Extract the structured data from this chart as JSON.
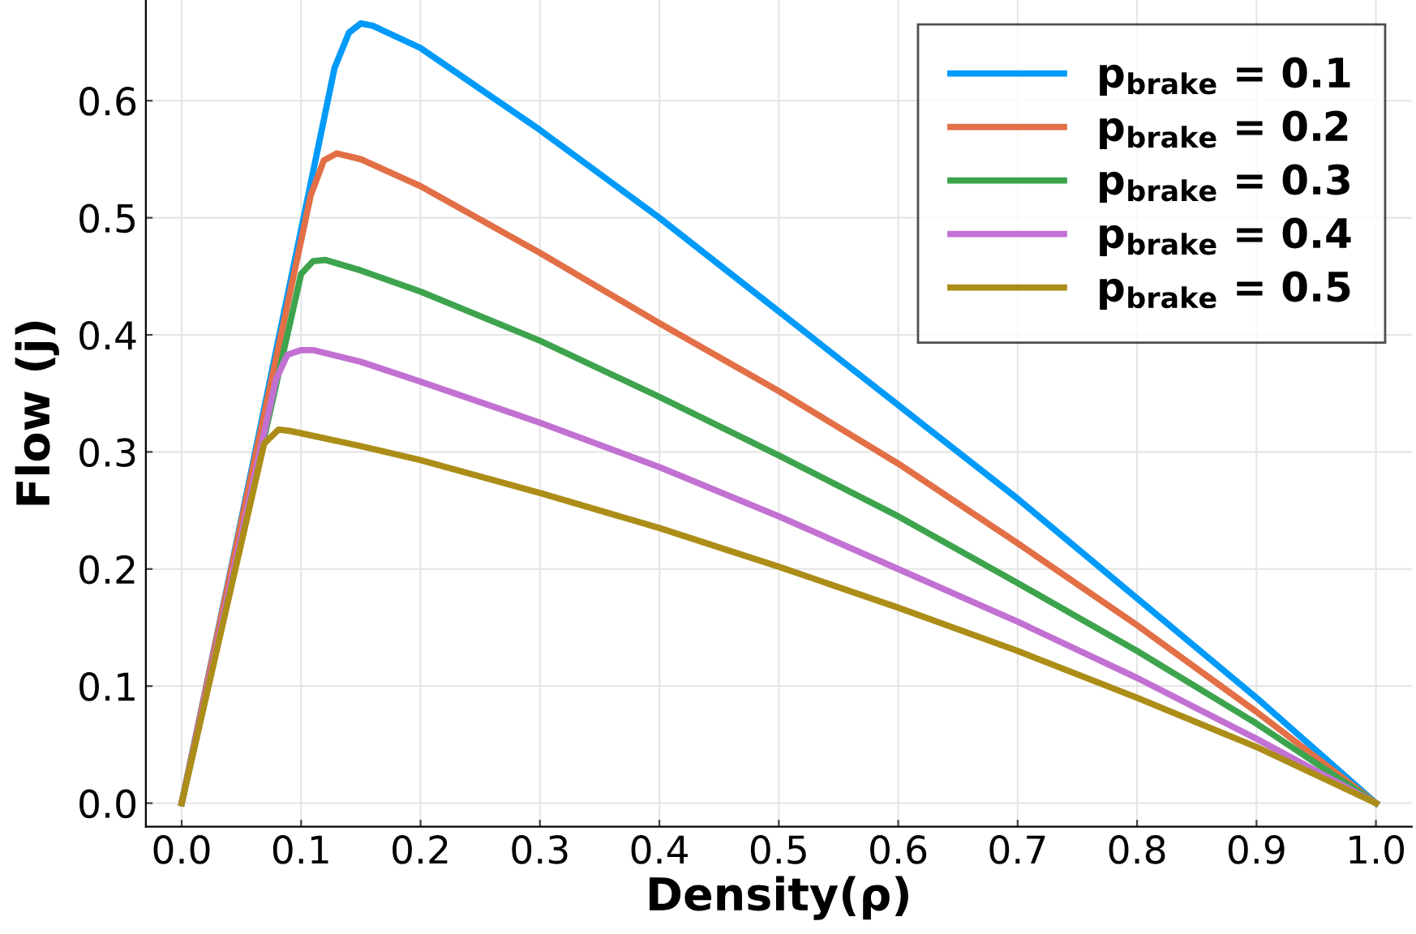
{
  "chart_data": {
    "type": "line",
    "xlabel": "Density(ρ)",
    "ylabel": "Flow (j)",
    "xlim": [
      -0.03,
      1.03
    ],
    "ylim": [
      -0.02,
      0.686
    ],
    "xticks": [
      "0.0",
      0.1,
      0.2,
      0.3,
      0.4,
      0.5,
      0.6,
      0.7,
      0.8,
      0.9,
      "1.0"
    ],
    "yticks": [
      "0.0",
      0.1,
      0.2,
      0.3,
      0.4,
      0.5,
      0.6
    ],
    "grid": true,
    "legend": "top right",
    "marker": "none",
    "line_style": "solid",
    "series": [
      {
        "name": "p$_{brake}$ = 0.1",
        "color": "#009af9",
        "x": [
          0,
          0.047,
          0.128,
          0.14,
          0.15,
          0.16,
          0.2,
          0.3,
          0.4,
          0.5,
          0.6,
          0.7,
          0.8,
          0.9,
          1.0
        ],
        "values": [
          0,
          0.228,
          0.628,
          0.658,
          0.666,
          0.664,
          0.645,
          0.575,
          0.5,
          0.42,
          0.34,
          0.26,
          0.175,
          0.09,
          0
        ]
      },
      {
        "name": "p$_{brake}$ = 0.2",
        "color": "#e26f46",
        "x": [
          0,
          0.108,
          0.119,
          0.13,
          0.15,
          0.2,
          0.3,
          0.4,
          0.5,
          0.6,
          0.7,
          0.8,
          0.9,
          1.0
        ],
        "values": [
          0,
          0.519,
          0.549,
          0.555,
          0.55,
          0.527,
          0.47,
          0.41,
          0.352,
          0.29,
          0.222,
          0.152,
          0.078,
          0
        ]
      },
      {
        "name": "p$_{brake}$ = 0.3",
        "color": "#3da44d",
        "x": [
          0,
          0.1,
          0.11,
          0.12,
          0.15,
          0.2,
          0.3,
          0.4,
          0.5,
          0.6,
          0.7,
          0.8,
          0.9,
          1.0
        ],
        "values": [
          0,
          0.452,
          0.463,
          0.464,
          0.455,
          0.437,
          0.395,
          0.347,
          0.297,
          0.245,
          0.188,
          0.13,
          0.068,
          0
        ]
      },
      {
        "name": "p$_{brake}$ = 0.4",
        "color": "#c271d2",
        "x": [
          0,
          0.079,
          0.0885,
          0.1,
          0.11,
          0.15,
          0.2,
          0.3,
          0.4,
          0.5,
          0.6,
          0.7,
          0.8,
          0.9,
          1.0
        ],
        "values": [
          0,
          0.362,
          0.383,
          0.387,
          0.387,
          0.377,
          0.36,
          0.325,
          0.287,
          0.245,
          0.2,
          0.155,
          0.107,
          0.055,
          0
        ]
      },
      {
        "name": "p$_{brake}$ = 0.5",
        "color": "#ac8d18",
        "x": [
          0,
          0.069,
          0.081,
          0.09,
          0.1,
          0.15,
          0.2,
          0.3,
          0.4,
          0.5,
          0.6,
          0.7,
          0.8,
          0.9,
          1.0
        ],
        "values": [
          0,
          0.307,
          0.319,
          0.318,
          0.316,
          0.305,
          0.293,
          0.265,
          0.235,
          0.202,
          0.167,
          0.13,
          0.09,
          0.048,
          0
        ]
      }
    ]
  }
}
